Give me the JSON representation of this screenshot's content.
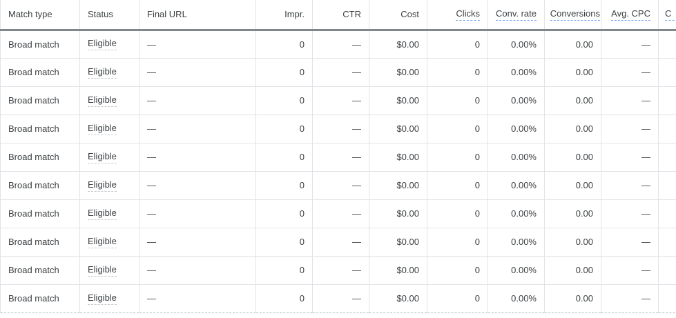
{
  "table": {
    "columns": [
      {
        "name": "match-type",
        "label": "Match type",
        "align": "left",
        "header_underline": false
      },
      {
        "name": "status",
        "label": "Status",
        "align": "left",
        "header_underline": false
      },
      {
        "name": "final-url",
        "label": "Final URL",
        "align": "left",
        "header_underline": false
      },
      {
        "name": "impressions",
        "label": "Impr.",
        "align": "right",
        "header_underline": false
      },
      {
        "name": "ctr",
        "label": "CTR",
        "align": "right",
        "header_underline": false
      },
      {
        "name": "cost",
        "label": "Cost",
        "align": "right",
        "header_underline": false
      },
      {
        "name": "clicks",
        "label": "Clicks",
        "align": "right",
        "header_underline": true
      },
      {
        "name": "conv-rate",
        "label": "Conv. rate",
        "align": "right",
        "header_underline": true
      },
      {
        "name": "conversions",
        "label": "Conversions",
        "align": "right",
        "header_underline": true
      },
      {
        "name": "avg-cpc",
        "label": "Avg. CPC",
        "align": "right",
        "header_underline": true
      },
      {
        "name": "cost-per-conv",
        "label": "C",
        "align": "left",
        "header_underline": true,
        "clipped": true
      }
    ],
    "rows": [
      [
        "Broad match",
        "Eligible",
        "—",
        "0",
        "—",
        "$0.00",
        "0",
        "0.00%",
        "0.00",
        "—",
        ""
      ],
      [
        "Broad match",
        "Eligible",
        "—",
        "0",
        "—",
        "$0.00",
        "0",
        "0.00%",
        "0.00",
        "—",
        ""
      ],
      [
        "Broad match",
        "Eligible",
        "—",
        "0",
        "—",
        "$0.00",
        "0",
        "0.00%",
        "0.00",
        "—",
        ""
      ],
      [
        "Broad match",
        "Eligible",
        "—",
        "0",
        "—",
        "$0.00",
        "0",
        "0.00%",
        "0.00",
        "—",
        ""
      ],
      [
        "Broad match",
        "Eligible",
        "—",
        "0",
        "—",
        "$0.00",
        "0",
        "0.00%",
        "0.00",
        "—",
        ""
      ],
      [
        "Broad match",
        "Eligible",
        "—",
        "0",
        "—",
        "$0.00",
        "0",
        "0.00%",
        "0.00",
        "—",
        ""
      ],
      [
        "Broad match",
        "Eligible",
        "—",
        "0",
        "—",
        "$0.00",
        "0",
        "0.00%",
        "0.00",
        "—",
        ""
      ],
      [
        "Broad match",
        "Eligible",
        "—",
        "0",
        "—",
        "$0.00",
        "0",
        "0.00%",
        "0.00",
        "—",
        ""
      ],
      [
        "Broad match",
        "Eligible",
        "—",
        "0",
        "—",
        "$0.00",
        "0",
        "0.00%",
        "0.00",
        "—",
        ""
      ],
      [
        "Broad match",
        "Eligible",
        "—",
        "0",
        "—",
        "$0.00",
        "0",
        "0.00%",
        "0.00",
        "—",
        ""
      ]
    ]
  },
  "colors": {
    "text": "#3c4043",
    "grid_line": "#e1e3e6",
    "header_rule": "#80868b",
    "metric_underline_blue": "#74a3f3",
    "status_underline_gray": "#c6c9cc"
  }
}
